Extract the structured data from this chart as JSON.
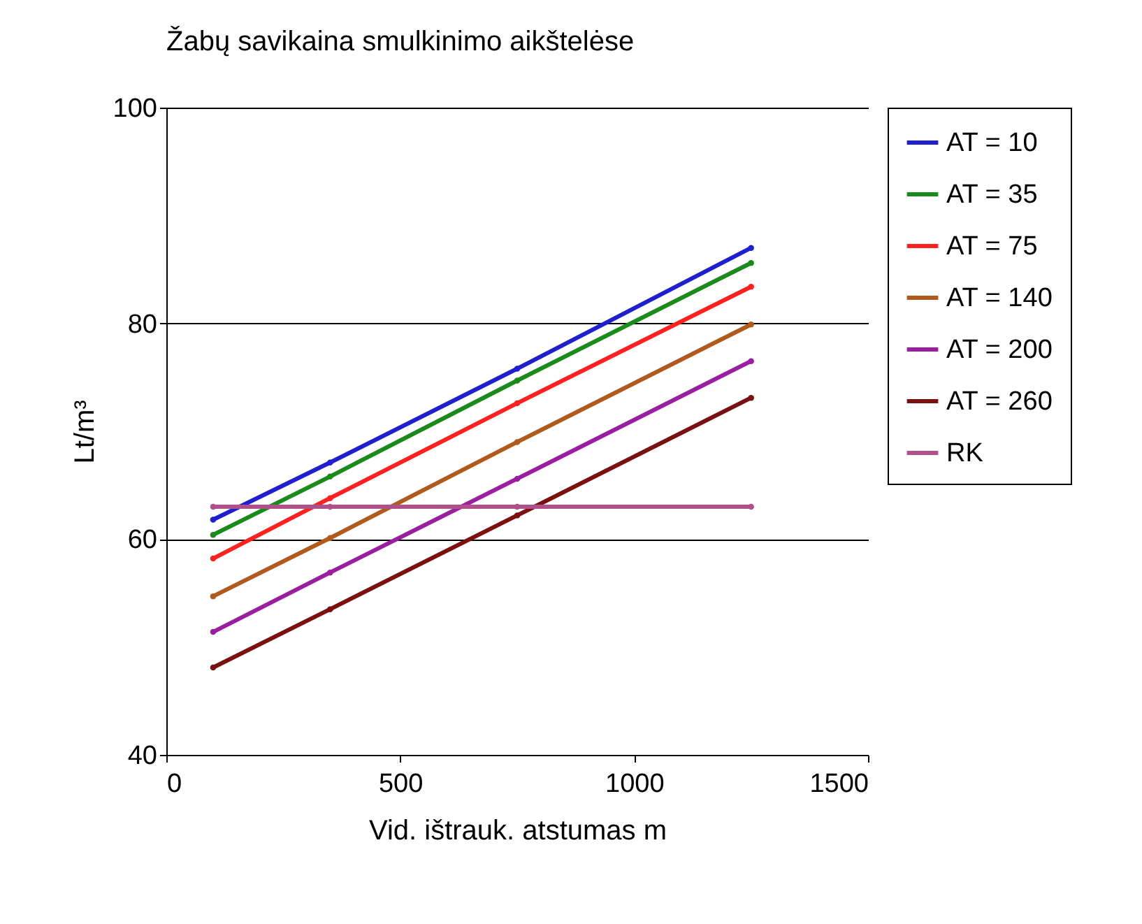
{
  "chart_data": {
    "type": "line",
    "title": "Žabų savikaina smulkinimo aikštelėse",
    "xlabel": "Vid. ištrauk. atstumas m",
    "ylabel": "Lt/m³",
    "x": [
      100,
      350,
      750,
      1250
    ],
    "series": [
      {
        "name": "AT = 10",
        "color": "#1f1fd0",
        "values": [
          61.8,
          67.1,
          75.8,
          87.0
        ]
      },
      {
        "name": "AT = 35",
        "color": "#1a8a1a",
        "values": [
          60.4,
          65.8,
          74.7,
          85.6
        ]
      },
      {
        "name": "AT = 75",
        "color": "#ff2020",
        "values": [
          58.2,
          63.8,
          72.6,
          83.4
        ]
      },
      {
        "name": "AT = 140",
        "color": "#b05a1e",
        "values": [
          54.7,
          60.1,
          69.0,
          79.9
        ]
      },
      {
        "name": "AT = 200",
        "color": "#9a1fa0",
        "values": [
          51.4,
          56.9,
          65.6,
          76.5
        ]
      },
      {
        "name": "AT = 260",
        "color": "#7a1010",
        "values": [
          48.1,
          53.5,
          62.2,
          73.1
        ]
      },
      {
        "name": "RK",
        "color": "#b0508a",
        "values": [
          63.0,
          63.0,
          63.0,
          63.0
        ]
      }
    ],
    "xlim": [
      0,
      1500
    ],
    "xticks": [
      0,
      500,
      1000,
      1500
    ],
    "ylim": [
      40,
      100
    ],
    "yticks": [
      40,
      60,
      80,
      100
    ],
    "grid": "y",
    "legend": "right",
    "marker": "circle",
    "line_style": "solid"
  }
}
